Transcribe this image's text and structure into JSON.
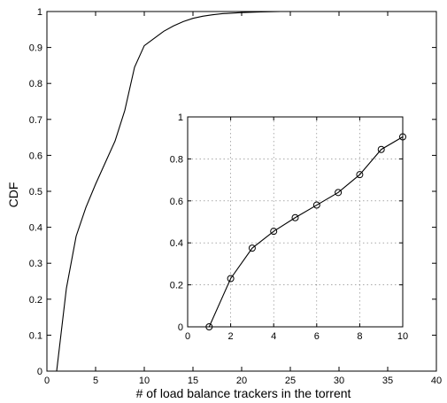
{
  "chart_data": [
    {
      "type": "line",
      "xlabel": "# of load balance trackers in the torrent",
      "ylabel": "CDF",
      "xlim": [
        0,
        40
      ],
      "ylim": [
        0,
        1
      ],
      "xticks": [
        0,
        5,
        10,
        15,
        20,
        25,
        30,
        35,
        40
      ],
      "yticks": [
        0,
        0.1,
        0.2,
        0.3,
        0.4,
        0.5,
        0.6,
        0.7,
        0.8,
        0.9,
        1
      ],
      "xtick_labels": [
        "0",
        "5",
        "10",
        "15",
        "20",
        "25",
        "30",
        "35",
        "40"
      ],
      "ytick_labels": [
        "0",
        "0.1",
        "0.2",
        "0.3",
        "0.4",
        "0.5",
        "0.6",
        "0.7",
        "0.8",
        "0.9",
        "1"
      ],
      "grid": false,
      "series": [
        {
          "x": [
            1,
            2,
            3,
            4,
            5,
            6,
            7,
            8,
            9,
            10,
            11,
            12,
            13,
            14,
            15,
            16,
            17,
            18,
            20,
            22,
            24,
            25,
            26
          ],
          "y": [
            0,
            0.23,
            0.375,
            0.455,
            0.52,
            0.58,
            0.64,
            0.725,
            0.845,
            0.905,
            0.925,
            0.945,
            0.96,
            0.972,
            0.981,
            0.987,
            0.991,
            0.994,
            0.997,
            0.999,
            1.0,
            1.0,
            1.0
          ],
          "color": "#000000"
        }
      ]
    },
    {
      "type": "line",
      "role": "inset",
      "xlabel": "",
      "ylabel": "",
      "xlim": [
        0,
        10
      ],
      "ylim": [
        0,
        1
      ],
      "xticks": [
        0,
        2,
        4,
        6,
        8,
        10
      ],
      "yticks": [
        0,
        0.2,
        0.4,
        0.6,
        0.8,
        1
      ],
      "xtick_labels": [
        "0",
        "2",
        "4",
        "6",
        "8",
        "10"
      ],
      "ytick_labels": [
        "0",
        "0.2",
        "0.4",
        "0.6",
        "0.8",
        "1"
      ],
      "grid": true,
      "markers": "circle",
      "series": [
        {
          "x": [
            1,
            2,
            3,
            4,
            5,
            6,
            7,
            8,
            9,
            10
          ],
          "y": [
            0,
            0.23,
            0.375,
            0.455,
            0.52,
            0.58,
            0.64,
            0.725,
            0.845,
            0.905
          ],
          "color": "#000000"
        }
      ]
    }
  ]
}
